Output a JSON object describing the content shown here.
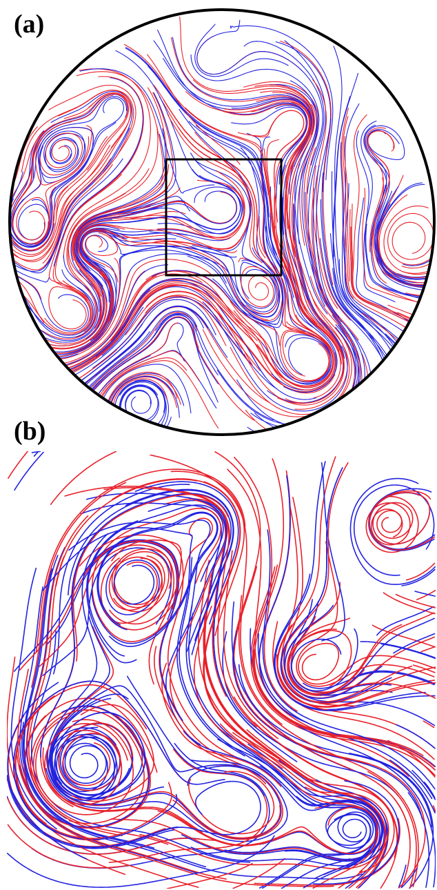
{
  "panels": {
    "a": {
      "label": "(a)"
    },
    "b": {
      "label": "(b)"
    }
  },
  "colors": {
    "series_red": "#e8202a",
    "series_blue": "#2222e0",
    "outline": "#000000",
    "background": "#ffffff"
  }
}
